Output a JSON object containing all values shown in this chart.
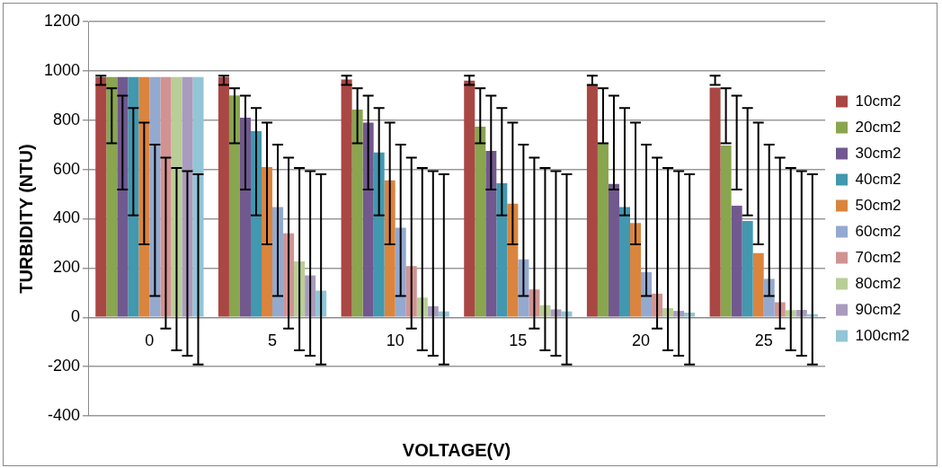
{
  "chart_data": {
    "type": "bar",
    "xlabel": "VOLTAGE(V)",
    "ylabel": "TURBIDITY (NTU)",
    "categories": [
      "0",
      "5",
      "10",
      "15",
      "20",
      "25"
    ],
    "ylim": [
      -400,
      1200
    ],
    "yticks": [
      -400,
      -200,
      0,
      200,
      400,
      600,
      800,
      1000,
      1200
    ],
    "grid": "y",
    "legend": "right",
    "series": [
      {
        "name": "10cm2",
        "color": "#a94744",
        "values": [
          975,
          975,
          965,
          960,
          944,
          932
        ],
        "errors": [
          [
            943,
            980
          ],
          [
            943,
            980
          ],
          [
            943,
            980
          ],
          [
            943,
            980
          ],
          [
            943,
            980
          ],
          [
            943,
            980
          ]
        ]
      },
      {
        "name": "20cm2",
        "color": "#89a54e",
        "values": [
          975,
          900,
          843,
          774,
          706,
          697
        ],
        "errors": [
          [
            706,
            929
          ],
          [
            706,
            929
          ],
          [
            706,
            929
          ],
          [
            706,
            929
          ],
          [
            706,
            929
          ],
          [
            706,
            929
          ]
        ]
      },
      {
        "name": "30cm2",
        "color": "#71588f",
        "values": [
          975,
          810,
          790,
          675,
          541,
          453
        ],
        "errors": [
          [
            518,
            899
          ],
          [
            518,
            899
          ],
          [
            518,
            899
          ],
          [
            518,
            899
          ],
          [
            518,
            899
          ],
          [
            518,
            899
          ]
        ]
      },
      {
        "name": "40cm2",
        "color": "#4198af",
        "values": [
          975,
          755,
          669,
          544,
          447,
          391
        ],
        "errors": [
          [
            414,
            849
          ],
          [
            414,
            849
          ],
          [
            414,
            849
          ],
          [
            414,
            849
          ],
          [
            414,
            849
          ],
          [
            414,
            849
          ]
        ]
      },
      {
        "name": "50cm2",
        "color": "#db843d",
        "values": [
          975,
          610,
          556,
          461,
          383,
          261
        ],
        "errors": [
          [
            296,
            790
          ],
          [
            296,
            790
          ],
          [
            296,
            790
          ],
          [
            296,
            790
          ],
          [
            296,
            790
          ],
          [
            296,
            790
          ]
        ]
      },
      {
        "name": "60cm2",
        "color": "#93a9cf",
        "values": [
          975,
          447,
          364,
          235,
          183,
          156
        ],
        "errors": [
          [
            87,
            701
          ],
          [
            87,
            701
          ],
          [
            87,
            701
          ],
          [
            87,
            701
          ],
          [
            87,
            701
          ],
          [
            87,
            701
          ]
        ]
      },
      {
        "name": "70cm2",
        "color": "#d19392",
        "values": [
          975,
          341,
          208,
          113,
          96,
          61
        ],
        "errors": [
          [
            -46,
            648
          ],
          [
            -46,
            648
          ],
          [
            -46,
            648
          ],
          [
            -46,
            648
          ],
          [
            -46,
            648
          ],
          [
            -46,
            648
          ]
        ]
      },
      {
        "name": "80cm2",
        "color": "#b9cd96",
        "values": [
          975,
          227,
          80,
          49,
          37,
          29
        ],
        "errors": [
          [
            -134,
            606
          ],
          [
            -134,
            606
          ],
          [
            -134,
            606
          ],
          [
            -134,
            606
          ],
          [
            -134,
            606
          ],
          [
            -134,
            606
          ]
        ]
      },
      {
        "name": "90cm2",
        "color": "#a99bbd",
        "values": [
          975,
          170,
          45,
          32,
          26,
          30
        ],
        "errors": [
          [
            -156,
            593
          ],
          [
            -156,
            593
          ],
          [
            -156,
            593
          ],
          [
            -156,
            593
          ],
          [
            -156,
            593
          ],
          [
            -156,
            593
          ]
        ]
      },
      {
        "name": "100cm2",
        "color": "#92c5d6",
        "values": [
          975,
          108,
          24,
          24,
          19,
          13
        ],
        "errors": [
          [
            -191,
            580
          ],
          [
            -191,
            580
          ],
          [
            -191,
            580
          ],
          [
            -191,
            580
          ],
          [
            -191,
            580
          ],
          [
            -191,
            580
          ]
        ]
      }
    ]
  }
}
